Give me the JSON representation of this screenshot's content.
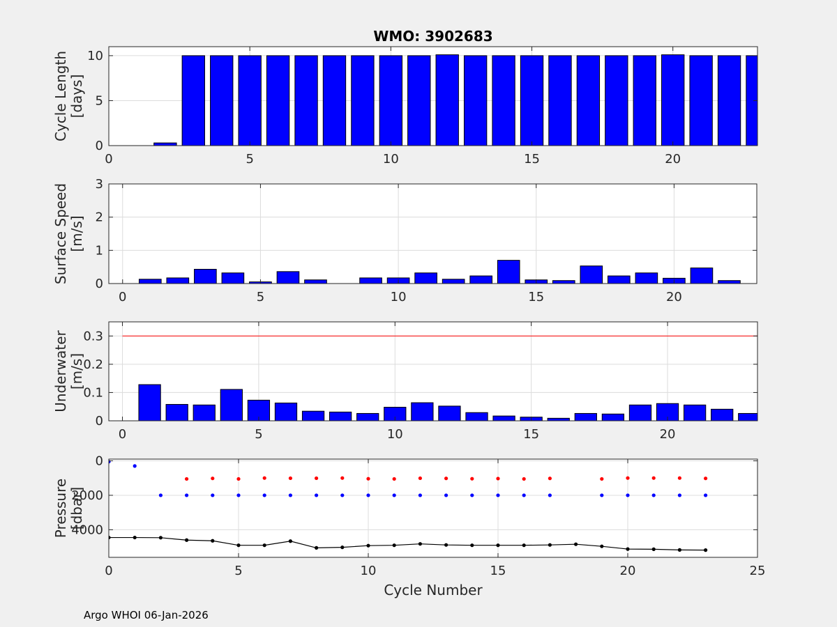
{
  "footer": "Argo WHOI 06-Jan-2026",
  "colors": {
    "bar": "#0000ff",
    "limit": "#ff0000",
    "park": "#ff0000",
    "profile": "#0000ff",
    "bottom": "#000000",
    "background": "#f0f0f0",
    "axes": "#ffffff",
    "grid": "#dcdcdc"
  },
  "chart_data": [
    {
      "type": "bar",
      "title": "WMO: 3902683",
      "ylabel_lines": [
        "Cycle Length",
        "[days]"
      ],
      "xlim": [
        0,
        23
      ],
      "ylim": [
        0,
        11
      ],
      "xticks": [
        0,
        5,
        10,
        15,
        20
      ],
      "yticks": [
        0,
        5,
        10
      ],
      "x": [
        2,
        3,
        4,
        5,
        6,
        7,
        8,
        9,
        10,
        11,
        12,
        13,
        14,
        15,
        16,
        17,
        18,
        19,
        20,
        21,
        22,
        23
      ],
      "values": [
        0.3,
        10,
        10,
        10,
        10,
        10,
        10,
        10,
        10,
        10,
        10.1,
        10,
        10,
        10,
        10,
        10,
        10,
        10,
        10.1,
        10,
        10,
        10
      ]
    },
    {
      "type": "bar",
      "ylabel_lines": [
        "Surface Speed",
        "[m/s]"
      ],
      "xlim": [
        -0.5,
        23
      ],
      "ylim": [
        0,
        3
      ],
      "xticks": [
        0,
        5,
        10,
        15,
        20
      ],
      "yticks": [
        0,
        1,
        2,
        3
      ],
      "x": [
        1,
        2,
        3,
        4,
        5,
        6,
        7,
        9,
        10,
        11,
        12,
        13,
        14,
        15,
        16,
        17,
        18,
        19,
        20,
        21,
        22
      ],
      "values": [
        0.13,
        0.17,
        0.43,
        0.32,
        0.05,
        0.36,
        0.11,
        0.17,
        0.17,
        0.32,
        0.13,
        0.23,
        0.7,
        0.11,
        0.09,
        0.53,
        0.23,
        0.32,
        0.16,
        0.47,
        0.09
      ]
    },
    {
      "type": "bar",
      "ylabel_lines": [
        "Underwater",
        "[m/s]"
      ],
      "xlim": [
        -0.5,
        23.3
      ],
      "ylim": [
        0,
        0.35
      ],
      "xticks": [
        0,
        5,
        10,
        15,
        20
      ],
      "yticks": [
        0,
        0.1,
        0.2,
        0.3
      ],
      "ytick_labels": [
        "0",
        "0.1",
        "0.2",
        "0.3"
      ],
      "x": [
        1,
        2,
        3,
        4,
        5,
        6,
        7,
        8,
        9,
        10,
        11,
        12,
        13,
        14,
        15,
        16,
        17,
        18,
        19,
        20,
        21,
        22,
        23
      ],
      "values": [
        0.128,
        0.058,
        0.056,
        0.111,
        0.073,
        0.063,
        0.034,
        0.031,
        0.026,
        0.048,
        0.064,
        0.052,
        0.029,
        0.017,
        0.013,
        0.009,
        0.026,
        0.024,
        0.056,
        0.061,
        0.056,
        0.041,
        0.026
      ],
      "reference_line": {
        "y": 0.3,
        "x_from": 0,
        "x_to": 24.5
      }
    },
    {
      "type": "scatter",
      "ylabel_lines": [
        "Pressure",
        "[dbar]"
      ],
      "xlabel": "Cycle Number",
      "xlim": [
        0,
        25
      ],
      "ylim": [
        5600,
        -100
      ],
      "xticks": [
        0,
        5,
        10,
        15,
        20,
        25
      ],
      "yticks": [
        0,
        2000,
        4000
      ],
      "series": [
        {
          "role": "park",
          "x": [
            3,
            4,
            5,
            6,
            7,
            8,
            9,
            10,
            11,
            12,
            13,
            14,
            15,
            16,
            17,
            19,
            20,
            21,
            22,
            23
          ],
          "values": [
            1050,
            1020,
            1050,
            1000,
            1010,
            1010,
            1000,
            1040,
            1050,
            1010,
            1020,
            1040,
            1030,
            1050,
            1020,
            1050,
            1000,
            1000,
            1000,
            1020
          ]
        },
        {
          "role": "profile",
          "x": [
            0,
            1,
            2,
            3,
            4,
            5,
            6,
            7,
            8,
            9,
            10,
            11,
            12,
            13,
            14,
            15,
            16,
            17,
            19,
            20,
            21,
            22,
            23
          ],
          "values": [
            50,
            300,
            2000,
            2000,
            2000,
            2000,
            2000,
            2000,
            2000,
            2000,
            2000,
            2000,
            2000,
            2000,
            2000,
            2000,
            2000,
            2000,
            2000,
            2000,
            2000,
            2000,
            2000
          ]
        },
        {
          "role": "bottom",
          "x": [
            0,
            1,
            2,
            3,
            4,
            5,
            6,
            7,
            8,
            9,
            10,
            11,
            12,
            13,
            14,
            15,
            16,
            17,
            18,
            19,
            20,
            21,
            22,
            23
          ],
          "values": [
            4450,
            4450,
            4460,
            4600,
            4640,
            4900,
            4900,
            4660,
            5050,
            5020,
            4920,
            4900,
            4820,
            4880,
            4900,
            4900,
            4900,
            4880,
            4840,
            4960,
            5120,
            5130,
            5170,
            5180
          ]
        }
      ]
    }
  ]
}
